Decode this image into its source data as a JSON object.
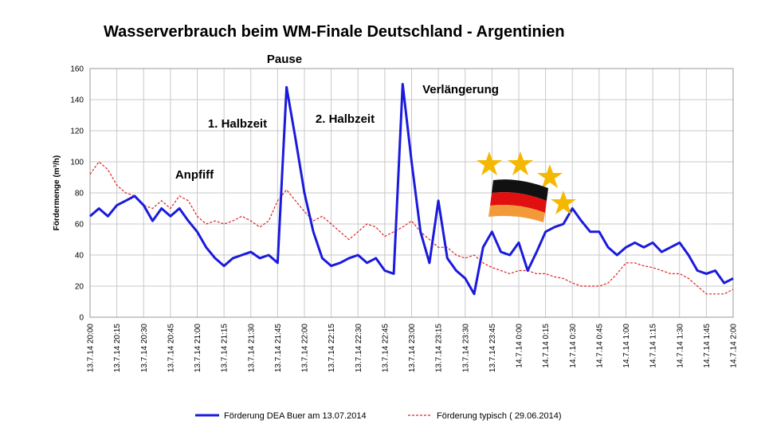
{
  "chart_data": {
    "type": "line",
    "title": "Wasserverbrauch beim WM-Finale Deutschland - Argentinien",
    "y_label": "Fördermenge (m³/h)",
    "annotations": [
      "Pause",
      "1. Halbzeit",
      "2. Halbzeit",
      "Anpfiff",
      "Verlängerung"
    ],
    "x": [
      "13.7.14 20:00",
      "13.7.14 20:05",
      "13.7.14 20:10",
      "13.7.14 20:15",
      "13.7.14 20:20",
      "13.7.14 20:25",
      "13.7.14 20:30",
      "13.7.14 20:35",
      "13.7.14 20:40",
      "13.7.14 20:45",
      "13.7.14 20:50",
      "13.7.14 20:55",
      "13.7.14 21:00",
      "13.7.14 21:05",
      "13.7.14 21:10",
      "13.7.14 21:15",
      "13.7.14 21:20",
      "13.7.14 21:25",
      "13.7.14 21:30",
      "13.7.14 21:35",
      "13.7.14 21:40",
      "13.7.14 21:45",
      "13.7.14 21:50",
      "13.7.14 21:55",
      "13.7.14 22:00",
      "13.7.14 22:05",
      "13.7.14 22:10",
      "13.7.14 22:15",
      "13.7.14 22:20",
      "13.7.14 22:25",
      "13.7.14 22:30",
      "13.7.14 22:35",
      "13.7.14 22:40",
      "13.7.14 22:45",
      "13.7.14 22:50",
      "13.7.14 22:55",
      "13.7.14 23:00",
      "13.7.14 23:05",
      "13.7.14 23:10",
      "13.7.14 23:15",
      "13.7.14 23:20",
      "13.7.14 23:25",
      "13.7.14 23:30",
      "13.7.14 23:35",
      "13.7.14 23:40",
      "13.7.14 23:45",
      "13.7.14 23:50",
      "13.7.14 23:55",
      "14.7.14 0:00",
      "14.7.14 0:05",
      "14.7.14 0:10",
      "14.7.14 0:15",
      "14.7.14 0:20",
      "14.7.14 0:25",
      "14.7.14 0:30",
      "14.7.14 0:35",
      "14.7.14 0:40",
      "14.7.14 0:45",
      "14.7.14 0:50",
      "14.7.14 0:55",
      "14.7.14 1:00",
      "14.7.14 1:05",
      "14.7.14 1:10",
      "14.7.14 1:15",
      "14.7.14 1:20",
      "14.7.14 1:25",
      "14.7.14 1:30",
      "14.7.14 1:35",
      "14.7.14 1:40",
      "14.7.14 1:45",
      "14.7.14 1:50",
      "14.7.14 1:55",
      "14.7.14 2:00"
    ],
    "xticks": [
      "13.7.14 20:00",
      "13.7.14 20:15",
      "13.7.14 20:30",
      "13.7.14 20:45",
      "13.7.14 21:00",
      "13.7.14 21:15",
      "13.7.14 21:30",
      "13.7.14 21:45",
      "13.7.14 22:00",
      "13.7.14 22:15",
      "13.7.14 22:30",
      "13.7.14 22:45",
      "13.7.14 23:00",
      "13.7.14 23:15",
      "13.7.14 23:30",
      "13.7.14 23:45",
      "14.7.14 0:00",
      "14.7.14 0:15",
      "14.7.14 0:30",
      "14.7.14 0:45",
      "14.7.14 1:00",
      "14.7.14 1:15",
      "14.7.14 1:30",
      "14.7.14 1:45",
      "14.7.14 2:00"
    ],
    "ylim": [
      0,
      160
    ],
    "yticks": [
      0,
      20,
      40,
      60,
      80,
      100,
      120,
      140,
      160
    ],
    "grid": true,
    "series": [
      {
        "name": "Förderung DEA Buer am 13.07.2014",
        "color": "#1a1adc",
        "style": "solid",
        "values": [
          65,
          70,
          65,
          72,
          75,
          78,
          72,
          62,
          70,
          65,
          70,
          62,
          55,
          45,
          38,
          33,
          38,
          40,
          42,
          38,
          40,
          35,
          148,
          115,
          80,
          55,
          38,
          33,
          35,
          38,
          40,
          35,
          38,
          30,
          28,
          150,
          100,
          55,
          35,
          75,
          38,
          30,
          25,
          15,
          45,
          55,
          42,
          40,
          48,
          30,
          42,
          55,
          58,
          60,
          70,
          62,
          55,
          55,
          45,
          40,
          45,
          48,
          45,
          48,
          42,
          45,
          48,
          40,
          30,
          28,
          30,
          22,
          25
        ]
      },
      {
        "name": "Förderung typisch ( 29.06.2014)",
        "color": "#e02020",
        "style": "dashed",
        "values": [
          92,
          100,
          95,
          85,
          80,
          78,
          72,
          70,
          75,
          70,
          78,
          75,
          65,
          60,
          62,
          60,
          62,
          65,
          62,
          58,
          62,
          75,
          82,
          75,
          68,
          62,
          65,
          60,
          55,
          50,
          55,
          60,
          58,
          52,
          55,
          58,
          62,
          55,
          50,
          45,
          45,
          40,
          38,
          40,
          35,
          32,
          30,
          28,
          30,
          30,
          28,
          28,
          26,
          25,
          22,
          20,
          20,
          20,
          22,
          28,
          35,
          35,
          33,
          32,
          30,
          28,
          28,
          25,
          20,
          15,
          15,
          15,
          18
        ]
      }
    ]
  }
}
